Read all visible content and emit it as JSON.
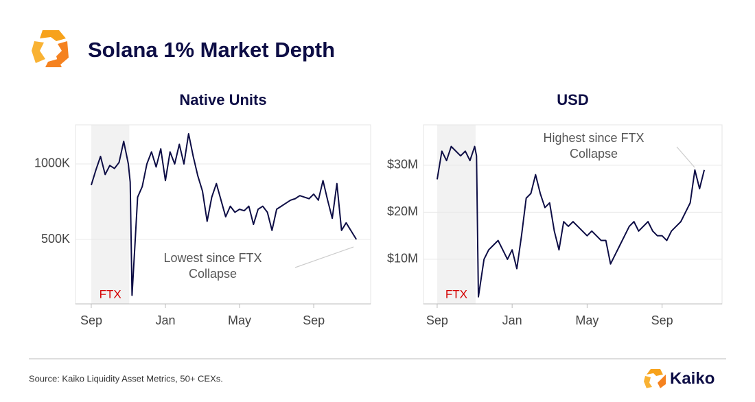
{
  "header": {
    "title": "Solana 1% Market Depth"
  },
  "footer": {
    "source": "Source: Kaiko Liquidity Asset Metrics, 50+ CEXs.",
    "brand": "Kaiko"
  },
  "chart_data": [
    {
      "type": "line",
      "title": "Native Units",
      "color": "#0d0d45",
      "grid": true,
      "x": [
        0,
        0.25,
        0.5,
        0.75,
        1,
        1.25,
        1.5,
        1.75,
        2,
        2.1,
        2.2,
        2.35,
        2.5,
        2.75,
        3,
        3.25,
        3.5,
        3.75,
        4,
        4.25,
        4.5,
        4.75,
        5,
        5.25,
        5.5,
        5.75,
        6,
        6.25,
        6.5,
        6.75,
        7,
        7.25,
        7.5,
        7.75,
        8,
        8.25,
        8.5,
        8.75,
        9,
        9.25,
        9.5,
        9.75,
        10,
        10.25,
        10.5,
        10.75,
        11,
        11.25,
        11.5,
        11.75,
        12,
        12.25,
        12.5,
        12.75,
        13,
        13.25,
        13.5,
        13.75,
        14.3
      ],
      "values": [
        860,
        960,
        1050,
        930,
        990,
        970,
        1010,
        1150,
        1000,
        880,
        130,
        450,
        780,
        850,
        1000,
        1080,
        980,
        1100,
        890,
        1080,
        1000,
        1130,
        1000,
        1200,
        1050,
        920,
        820,
        620,
        780,
        870,
        760,
        650,
        720,
        680,
        700,
        690,
        720,
        600,
        700,
        720,
        680,
        560,
        700,
        720,
        740,
        760,
        770,
        790,
        780,
        770,
        800,
        760,
        890,
        760,
        640,
        870,
        560,
        610,
        500
      ],
      "xlim": [
        -0.85,
        15.07
      ],
      "xticks": [
        {
          "value": 0,
          "label": "Sep"
        },
        {
          "value": 4,
          "label": "Jan"
        },
        {
          "value": 8,
          "label": "May"
        },
        {
          "value": 12,
          "label": "Sep"
        }
      ],
      "ylim": [
        73,
        1259
      ],
      "yticks": [
        {
          "value": 500,
          "label": "500K"
        },
        {
          "value": 1000,
          "label": "1000K"
        }
      ],
      "highlight": {
        "start": 0,
        "end": 2.05,
        "label": "FTX"
      },
      "annotation": [
        "Lowest since FTX",
        "Collapse"
      ]
    },
    {
      "type": "line",
      "title": "USD",
      "color": "#0d0d45",
      "grid": true,
      "x": [
        0,
        0.25,
        0.5,
        0.75,
        1,
        1.25,
        1.5,
        1.75,
        2,
        2.1,
        2.2,
        2.35,
        2.5,
        2.75,
        3,
        3.25,
        3.5,
        3.75,
        4,
        4.25,
        4.5,
        4.75,
        5,
        5.25,
        5.5,
        5.75,
        6,
        6.25,
        6.5,
        6.75,
        7,
        7.25,
        7.5,
        7.75,
        8,
        8.25,
        8.5,
        8.75,
        9,
        9.25,
        9.5,
        9.75,
        10,
        10.25,
        10.5,
        10.75,
        11,
        11.25,
        11.5,
        11.75,
        12,
        12.25,
        12.5,
        12.75,
        13,
        13.25,
        13.5,
        13.75,
        14,
        14.25
      ],
      "values": [
        27,
        33,
        31,
        34,
        33,
        32,
        33,
        31,
        34,
        32,
        2,
        6,
        10,
        12,
        13,
        14,
        12,
        10,
        12,
        8,
        15,
        23,
        24,
        28,
        24,
        21,
        22,
        16,
        12,
        18,
        17,
        18,
        17,
        16,
        15,
        16,
        15,
        14,
        14,
        9,
        11,
        13,
        15,
        17,
        18,
        16,
        17,
        18,
        16,
        15,
        15,
        14,
        16,
        17,
        18,
        20,
        22,
        29,
        25,
        29
      ],
      "xlim": [
        -0.73,
        15.2
      ],
      "xticks": [
        {
          "value": 0,
          "label": "Sep"
        },
        {
          "value": 4,
          "label": "Jan"
        },
        {
          "value": 8,
          "label": "May"
        },
        {
          "value": 12,
          "label": "Sep"
        }
      ],
      "ylim": [
        0.5,
        38.6
      ],
      "yticks": [
        {
          "value": 10,
          "label": "$10M"
        },
        {
          "value": 20,
          "label": "$20M"
        },
        {
          "value": 30,
          "label": "$30M"
        }
      ],
      "highlight": {
        "start": 0,
        "end": 2.05,
        "label": "FTX"
      },
      "annotation": [
        "Highest since FTX",
        "Collapse"
      ]
    }
  ]
}
